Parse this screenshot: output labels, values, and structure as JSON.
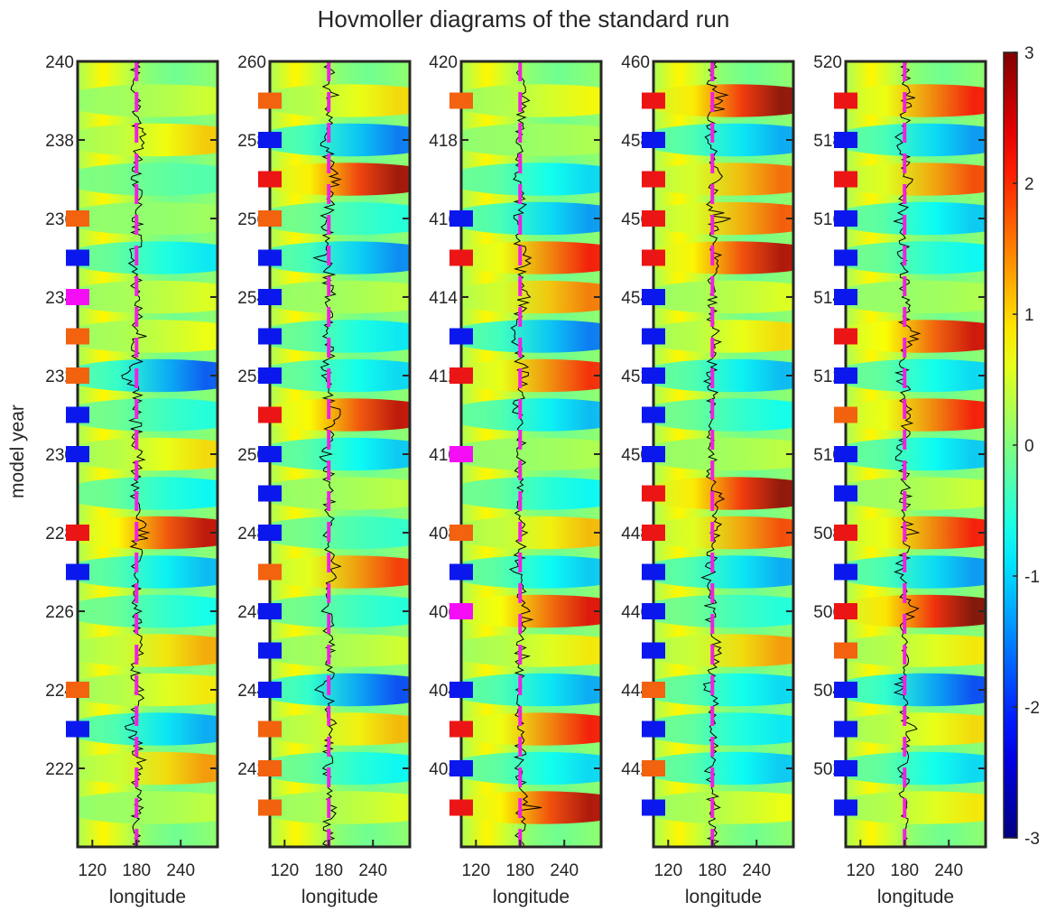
{
  "chart_data": {
    "type": "heatmap",
    "title": "Hovmoller diagrams of the standard run",
    "ylabel": "model year",
    "colormap": "jet",
    "colorbar": {
      "range": [
        -3,
        3
      ],
      "ticks": [
        "3",
        "2",
        "1",
        "0",
        "-1",
        "-2",
        "-3"
      ]
    },
    "marker_colors": {
      "blue": "#0a18ee",
      "red": "#ec1515",
      "orange": "#f2620f",
      "magenta": "#f50ef5"
    },
    "dashed_line": {
      "longitude": 180,
      "color": "#f020e0"
    },
    "panels": [
      {
        "xlabel": "longitude",
        "xticks": [
          "120",
          "180",
          "240"
        ],
        "xlim": [
          100,
          290
        ],
        "ylim": [
          220,
          240
        ],
        "ytick_values": [
          222,
          224,
          226,
          228,
          230,
          232,
          234,
          236,
          238,
          240
        ],
        "yticks": [
          "222",
          "224",
          "226",
          "228",
          "230",
          "232",
          "234",
          "236",
          "238",
          "240"
        ],
        "events": [
          {
            "year": 239,
            "value": 0.5
          },
          {
            "year": 238,
            "value": 1.1
          },
          {
            "year": 237,
            "value": -0.3
          },
          {
            "year": 236,
            "value": 0.2
          },
          {
            "year": 235,
            "value": -0.9
          },
          {
            "year": 234,
            "value": 0.6
          },
          {
            "year": 233,
            "value": 0.7
          },
          {
            "year": 232,
            "value": -1.8
          },
          {
            "year": 231,
            "value": -0.6
          },
          {
            "year": 230,
            "value": 1.0
          },
          {
            "year": 229,
            "value": -0.8
          },
          {
            "year": 228,
            "value": 2.6
          },
          {
            "year": 227,
            "value": -1.2
          },
          {
            "year": 226,
            "value": -0.7
          },
          {
            "year": 225,
            "value": 1.3
          },
          {
            "year": 224,
            "value": 0.9
          },
          {
            "year": 223,
            "value": -1.3
          },
          {
            "year": 222,
            "value": 1.4
          },
          {
            "year": 221,
            "value": 0.4
          }
        ],
        "markers": [
          {
            "year": 236,
            "color": "orange"
          },
          {
            "year": 235,
            "color": "blue"
          },
          {
            "year": 234,
            "color": "magenta"
          },
          {
            "year": 233,
            "color": "orange"
          },
          {
            "year": 232,
            "color": "orange"
          },
          {
            "year": 231,
            "color": "blue"
          },
          {
            "year": 230,
            "color": "blue"
          },
          {
            "year": 228,
            "color": "red"
          },
          {
            "year": 227,
            "color": "blue"
          },
          {
            "year": 224,
            "color": "orange"
          },
          {
            "year": 223,
            "color": "blue"
          }
        ]
      },
      {
        "xlabel": "longitude",
        "xticks": [
          "120",
          "180",
          "240"
        ],
        "xlim": [
          100,
          290
        ],
        "ylim": [
          240,
          260
        ],
        "ytick_values": [
          242,
          244,
          246,
          248,
          250,
          252,
          254,
          256,
          258,
          260
        ],
        "yticks": [
          "242",
          "244",
          "246",
          "248",
          "250",
          "252",
          "254",
          "256",
          "258",
          "260"
        ],
        "events": [
          {
            "year": 259,
            "value": 1.0
          },
          {
            "year": 258,
            "value": -1.6
          },
          {
            "year": 257,
            "value": 2.8
          },
          {
            "year": 256,
            "value": -0.6
          },
          {
            "year": 255,
            "value": -1.5
          },
          {
            "year": 254,
            "value": 0.4
          },
          {
            "year": 253,
            "value": -0.9
          },
          {
            "year": 252,
            "value": -1.0
          },
          {
            "year": 251,
            "value": 2.6
          },
          {
            "year": 250,
            "value": -1.1
          },
          {
            "year": 249,
            "value": 0.4
          },
          {
            "year": 248,
            "value": -0.5
          },
          {
            "year": 247,
            "value": 2.0
          },
          {
            "year": 246,
            "value": -0.6
          },
          {
            "year": 245,
            "value": 0.5
          },
          {
            "year": 244,
            "value": -1.9
          },
          {
            "year": 243,
            "value": 1.2
          },
          {
            "year": 242,
            "value": -0.8
          },
          {
            "year": 241,
            "value": 0.6
          }
        ],
        "markers": [
          {
            "year": 259,
            "color": "orange"
          },
          {
            "year": 258,
            "color": "blue"
          },
          {
            "year": 257,
            "color": "red"
          },
          {
            "year": 256,
            "color": "orange"
          },
          {
            "year": 255,
            "color": "blue"
          },
          {
            "year": 254,
            "color": "blue"
          },
          {
            "year": 253,
            "color": "blue"
          },
          {
            "year": 252,
            "color": "blue"
          },
          {
            "year": 251,
            "color": "red"
          },
          {
            "year": 250,
            "color": "blue"
          },
          {
            "year": 249,
            "color": "blue"
          },
          {
            "year": 248,
            "color": "blue"
          },
          {
            "year": 247,
            "color": "orange"
          },
          {
            "year": 246,
            "color": "blue"
          },
          {
            "year": 245,
            "color": "blue"
          },
          {
            "year": 244,
            "color": "blue"
          },
          {
            "year": 243,
            "color": "orange"
          },
          {
            "year": 242,
            "color": "orange"
          },
          {
            "year": 241,
            "color": "orange"
          }
        ]
      },
      {
        "xlabel": "longitude",
        "xticks": [
          "120",
          "180",
          "240"
        ],
        "xlim": [
          100,
          290
        ],
        "ylim": [
          400,
          420
        ],
        "ytick_values": [
          402,
          404,
          406,
          408,
          410,
          412,
          414,
          416,
          418,
          420
        ],
        "yticks": [
          "402",
          "404",
          "406",
          "408",
          "410",
          "412",
          "414",
          "416",
          "418",
          "420"
        ],
        "events": [
          {
            "year": 419,
            "value": 0.8
          },
          {
            "year": 418,
            "value": 0.3
          },
          {
            "year": 417,
            "value": -1.0
          },
          {
            "year": 416,
            "value": -1.4
          },
          {
            "year": 415,
            "value": 2.2
          },
          {
            "year": 414,
            "value": 1.6
          },
          {
            "year": 413,
            "value": -1.6
          },
          {
            "year": 412,
            "value": 2.1
          },
          {
            "year": 411,
            "value": -1.2
          },
          {
            "year": 410,
            "value": 0.3
          },
          {
            "year": 409,
            "value": -0.8
          },
          {
            "year": 408,
            "value": 1.2
          },
          {
            "year": 407,
            "value": -1.1
          },
          {
            "year": 406,
            "value": 2.4
          },
          {
            "year": 405,
            "value": 0.9
          },
          {
            "year": 404,
            "value": -1.3
          },
          {
            "year": 403,
            "value": 2.2
          },
          {
            "year": 402,
            "value": -1.0
          },
          {
            "year": 401,
            "value": 2.7
          }
        ],
        "markers": [
          {
            "year": 419,
            "color": "orange"
          },
          {
            "year": 416,
            "color": "blue"
          },
          {
            "year": 415,
            "color": "red"
          },
          {
            "year": 413,
            "color": "blue"
          },
          {
            "year": 412,
            "color": "red"
          },
          {
            "year": 410,
            "color": "magenta"
          },
          {
            "year": 408,
            "color": "orange"
          },
          {
            "year": 407,
            "color": "blue"
          },
          {
            "year": 406,
            "color": "magenta"
          },
          {
            "year": 404,
            "color": "blue"
          },
          {
            "year": 403,
            "color": "red"
          },
          {
            "year": 402,
            "color": "blue"
          },
          {
            "year": 401,
            "color": "red"
          }
        ]
      },
      {
        "xlabel": "longitude",
        "xticks": [
          "120",
          "180",
          "240"
        ],
        "xlim": [
          100,
          290
        ],
        "ylim": [
          440,
          460
        ],
        "ytick_values": [
          442,
          444,
          446,
          448,
          450,
          452,
          454,
          456,
          458,
          460
        ],
        "yticks": [
          "442",
          "444",
          "446",
          "448",
          "450",
          "452",
          "454",
          "456",
          "458",
          "460"
        ],
        "events": [
          {
            "year": 459,
            "value": 2.9
          },
          {
            "year": 458,
            "value": -1.3
          },
          {
            "year": 457,
            "value": 1.7
          },
          {
            "year": 456,
            "value": 1.8
          },
          {
            "year": 455,
            "value": 2.7
          },
          {
            "year": 454,
            "value": 0.6
          },
          {
            "year": 453,
            "value": 1.0
          },
          {
            "year": 452,
            "value": -1.2
          },
          {
            "year": 451,
            "value": -0.7
          },
          {
            "year": 450,
            "value": 0.4
          },
          {
            "year": 449,
            "value": 2.9
          },
          {
            "year": 448,
            "value": 1.9
          },
          {
            "year": 447,
            "value": -1.3
          },
          {
            "year": 446,
            "value": -0.6
          },
          {
            "year": 445,
            "value": 1.4
          },
          {
            "year": 444,
            "value": -1.0
          },
          {
            "year": 443,
            "value": -0.9
          },
          {
            "year": 442,
            "value": -1.1
          },
          {
            "year": 441,
            "value": 0.7
          }
        ],
        "markers": [
          {
            "year": 459,
            "color": "red"
          },
          {
            "year": 458,
            "color": "blue"
          },
          {
            "year": 457,
            "color": "red"
          },
          {
            "year": 456,
            "color": "red"
          },
          {
            "year": 455,
            "color": "red"
          },
          {
            "year": 454,
            "color": "blue"
          },
          {
            "year": 453,
            "color": "blue"
          },
          {
            "year": 452,
            "color": "blue"
          },
          {
            "year": 451,
            "color": "blue"
          },
          {
            "year": 450,
            "color": "blue"
          },
          {
            "year": 449,
            "color": "red"
          },
          {
            "year": 448,
            "color": "red"
          },
          {
            "year": 447,
            "color": "blue"
          },
          {
            "year": 446,
            "color": "blue"
          },
          {
            "year": 445,
            "color": "blue"
          },
          {
            "year": 444,
            "color": "orange"
          },
          {
            "year": 443,
            "color": "blue"
          },
          {
            "year": 442,
            "color": "orange"
          },
          {
            "year": 441,
            "color": "blue"
          }
        ]
      },
      {
        "xlabel": "longitude",
        "xticks": [
          "120",
          "180",
          "240"
        ],
        "xlim": [
          100,
          290
        ],
        "ylim": [
          500,
          520
        ],
        "ytick_values": [
          502,
          504,
          506,
          508,
          510,
          512,
          514,
          516,
          518,
          520
        ],
        "yticks": [
          "502",
          "504",
          "506",
          "508",
          "510",
          "512",
          "514",
          "516",
          "518",
          "520"
        ],
        "events": [
          {
            "year": 519,
            "value": 2.2
          },
          {
            "year": 518,
            "value": -1.4
          },
          {
            "year": 517,
            "value": 1.9
          },
          {
            "year": 516,
            "value": -1.1
          },
          {
            "year": 515,
            "value": -0.8
          },
          {
            "year": 514,
            "value": 0.3
          },
          {
            "year": 513,
            "value": 2.5
          },
          {
            "year": 512,
            "value": -1.0
          },
          {
            "year": 511,
            "value": 2.2
          },
          {
            "year": 510,
            "value": -1.1
          },
          {
            "year": 509,
            "value": 0.5
          },
          {
            "year": 508,
            "value": 2.2
          },
          {
            "year": 507,
            "value": -1.4
          },
          {
            "year": 506,
            "value": 3.0
          },
          {
            "year": 505,
            "value": 0.9
          },
          {
            "year": 504,
            "value": -1.9
          },
          {
            "year": 503,
            "value": 1.0
          },
          {
            "year": 502,
            "value": -1.0
          },
          {
            "year": 501,
            "value": 0.9
          }
        ],
        "markers": [
          {
            "year": 519,
            "color": "red"
          },
          {
            "year": 518,
            "color": "blue"
          },
          {
            "year": 517,
            "color": "red"
          },
          {
            "year": 516,
            "color": "blue"
          },
          {
            "year": 515,
            "color": "blue"
          },
          {
            "year": 514,
            "color": "blue"
          },
          {
            "year": 513,
            "color": "red"
          },
          {
            "year": 512,
            "color": "blue"
          },
          {
            "year": 511,
            "color": "orange"
          },
          {
            "year": 510,
            "color": "blue"
          },
          {
            "year": 509,
            "color": "blue"
          },
          {
            "year": 508,
            "color": "red"
          },
          {
            "year": 507,
            "color": "blue"
          },
          {
            "year": 506,
            "color": "red"
          },
          {
            "year": 505,
            "color": "orange"
          },
          {
            "year": 504,
            "color": "blue"
          },
          {
            "year": 503,
            "color": "blue"
          },
          {
            "year": 502,
            "color": "blue"
          },
          {
            "year": 501,
            "color": "blue"
          }
        ]
      }
    ]
  }
}
